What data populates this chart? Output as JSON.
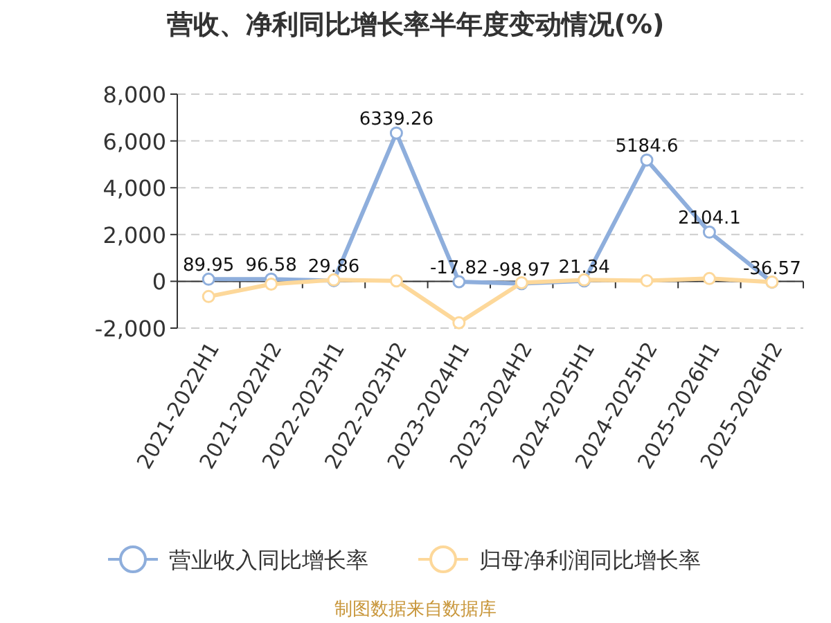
{
  "chart_data": {
    "type": "line",
    "title": "营收、净利同比增长率半年度变动情况(%)",
    "categories": [
      "2021-2022H1",
      "2021-2022H2",
      "2022-2023H1",
      "2022-2023H2",
      "2023-2024H1",
      "2023-2024H2",
      "2024-2025H1",
      "2024-2025H2",
      "2025-2026H1",
      "2025-2026H2"
    ],
    "series": [
      {
        "name": "营业收入同比增长率",
        "color": "#8eaedc",
        "values": [
          89.95,
          96.58,
          29.86,
          6339.26,
          -17.82,
          -98.97,
          21.34,
          5184.6,
          2104.1,
          -36.57
        ],
        "value_labels": [
          "89.95",
          "96.58",
          "29.86",
          "6339.26",
          "-17.82",
          "-98.97",
          "21.34",
          "5184.6",
          "2104.1",
          "-36.57"
        ]
      },
      {
        "name": "归母净利润同比增长率",
        "color": "#fdd89a",
        "values": [
          -650,
          -120,
          60,
          20,
          -1770,
          -60,
          60,
          30,
          120,
          -30
        ]
      }
    ],
    "ylim": [
      -2000,
      8000
    ],
    "yticks": [
      {
        "value": -2000,
        "label": "-2,000"
      },
      {
        "value": 0,
        "label": "0"
      },
      {
        "value": 2000,
        "label": "2,000"
      },
      {
        "value": 4000,
        "label": "4,000"
      },
      {
        "value": 6000,
        "label": "6,000"
      },
      {
        "value": 8000,
        "label": "8,000"
      }
    ],
    "grid": "y",
    "legend": "bottom",
    "marker": "circle",
    "annotations": [
      "制图数据来自数据库"
    ]
  }
}
